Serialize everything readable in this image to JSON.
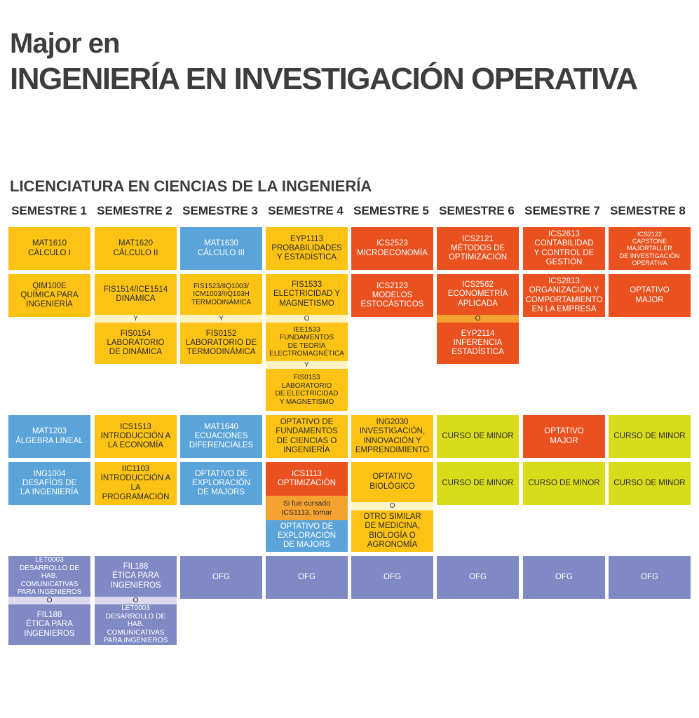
{
  "title_line1": "Major en",
  "title_line2": "INGENIERÍA EN INVESTIGACIÓN OPERATIVA",
  "subtitle": "LICENCIATURA EN CIENCIAS DE LA INGENIERÍA",
  "semesters": [
    "SEMESTRE 1",
    "SEMESTRE 2",
    "SEMESTRE 3",
    "SEMESTRE 4",
    "SEMESTRE 5",
    "SEMESTRE 6",
    "SEMESTRE 7",
    "SEMESTRE 8"
  ],
  "colors": {
    "yellow": "#fcc314",
    "blue": "#5ba4d9",
    "red": "#e9511f",
    "lime": "#d9dc1a",
    "purple": "#7f8ac5",
    "orange": "#f4a331"
  },
  "courses": {
    "s1_r1": "MAT1610\nCÁLCULO I",
    "s1_r2": "QIM100E\nQUÍMICA PARA\nINGENIERÍA",
    "s1_r3": "MAT1203\nÁLGEBRA LINEAL",
    "s1_r4": "ING1004\nDESAFÍOS DE\nLA INGENIERÍA",
    "s1_r5a": "LET0003\nDESARROLLO DE HAB.\nCOMUNICATIVAS\nPARA INGENIEROS",
    "s1_r5_conn": "O",
    "s1_r5b": "FIL188\nÉTICA PARA\nINGENIEROS",
    "s2_r1": "MAT1620\nCÁLCULO II",
    "s2_r2a": "FIS1514/ICE1514\nDINÁMICA",
    "s2_r2_conn": "Y",
    "s2_r2b": "FIS0154\nLABORATORIO\nDE DINÁMICA",
    "s2_r3": "ICS1513\nINTRODUCCIÓN A\nLA ECONOMÍA",
    "s2_r4": "IIC1103\nINTRODUCCIÓN A\nLA PROGRAMACIÓN",
    "s2_r5a": "FIL188\nÉTICA PARA\nINGENIEROS",
    "s2_r5_conn": "O",
    "s2_r5b": "LET0003\nDESARROLLO DE HAB.\nCOMUNICATIVAS\nPARA INGENIEROS",
    "s3_r1": "MAT1630\nCÁLCULO III",
    "s3_r2a": "FIS1523/IIQ1003/\nICM1003/IIQ103H\nTERMODINÁMICA",
    "s3_r2_conn": "Y",
    "s3_r2b": "FIS0152\nLABORATORIO DE\nTERMODINÁMICA",
    "s3_r3": "MAT1640\nECUACIONES\nDIFERENCIALES",
    "s3_r4": "OPTATIVO DE\nEXPLORACIÓN\nDE MAJORS",
    "s3_r5": "OFG",
    "s4_r1": "EYP1113\nPROBABILIDADES\nY ESTADÍSTICA",
    "s4_r2a": "FIS1533\nELECTRICIDAD Y\nMAGNETISMO",
    "s4_r2_conn1": "O",
    "s4_r2b": "IEE1533\nFUNDAMENTOS\nDE TEORÍA\nELECTROMAGNÉTICA",
    "s4_r2_conn2": "Y",
    "s4_r2c": "FIS0153\nLABORATORIO\nDE ELECTRICIDAD\nY MAGNETISMO",
    "s4_r3": "OPTATIVO DE\nFUNDAMENTOS\nDE CIENCIAS O\nINGENIERÍA",
    "s4_r4a": "ICS1113\nOPTIMIZACIÓN",
    "s4_r4_note": "Si fue cursado\nICS1113, tomar",
    "s4_r4b": "OPTATIVO DE\nEXPLORACIÓN\nDE MAJORS",
    "s4_r5": "OFG",
    "s5_r1": "ICS2523\nMICROECONOMÍA",
    "s5_r2": "ICS2123\nMODELOS\nESTOCÁSTICOS",
    "s5_r3": "ING2030\nINVESTIGACIÓN,\nINNOVACIÓN Y\nEMPRENDIMIENTO",
    "s5_r4a": "OPTATIVO\nBIOLÓGICO",
    "s5_r4_conn": "O",
    "s5_r4b": "OTRO SIMILAR\nDE MEDICINA,\nBIOLOGÍA O\nAGRONOMÍA",
    "s5_r5": "OFG",
    "s6_r1": "ICS2121\nMÉTODOS DE\nOPTIMIZACIÓN",
    "s6_r2a": "ICS2562\nECONOMETRÍA\nAPLICADA",
    "s6_r2_conn": "O",
    "s6_r2b": "EYP2114\nINFERENCIA\nESTADÍSTICA",
    "s6_r3": "CURSO DE MINOR",
    "s6_r4": "CURSO DE MINOR",
    "s6_r5": "OFG",
    "s7_r1": "ICS2613\nCONTABILIDAD\nY CONTROL DE\nGESTIÓN",
    "s7_r2": "ICS2813\nORGANIZACIÓN Y\nCOMPORTAMIENTO\nEN LA EMPRESA",
    "s7_r3": "OPTATIVO\nMAJOR",
    "s7_r4": "CURSO DE MINOR",
    "s7_r5": "OFG",
    "s8_r1": "ICS2122\nCAPSTONE MAJORTALLER\nDE INVESTIGACIÓN\nOPERATIVA",
    "s8_r2": "OPTATIVO\nMAJOR",
    "s8_r3": "CURSO DE MINOR",
    "s8_r4": "CURSO DE MINOR",
    "s8_r5": "OFG"
  }
}
